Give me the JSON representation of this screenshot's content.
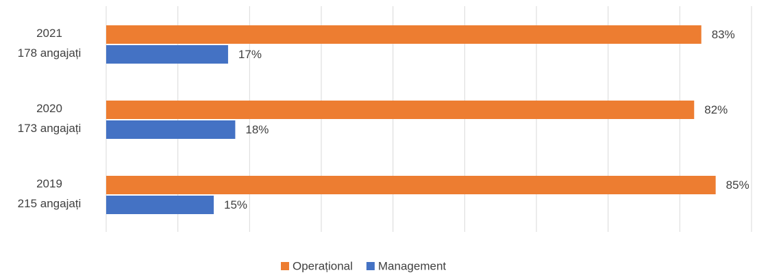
{
  "chart_data": {
    "type": "hbar",
    "categories": [
      [
        "2021",
        "178 angajați"
      ],
      [
        "2020",
        "173 angajați"
      ],
      [
        "2019",
        "215 angajați"
      ]
    ],
    "series": [
      {
        "name": "Operațional",
        "color": "#ED7D31",
        "values": [
          83,
          82,
          85
        ],
        "value_labels": [
          "83%",
          "82%",
          "85%"
        ]
      },
      {
        "name": "Management",
        "color": "#4472C4",
        "values": [
          17,
          18,
          15
        ],
        "value_labels": [
          "17%",
          "18%",
          "15%"
        ]
      }
    ],
    "xlim": [
      0,
      90
    ],
    "xticks": [
      0,
      10,
      20,
      30,
      40,
      50,
      60,
      70,
      80,
      90
    ],
    "tick_labels": false,
    "grid": true,
    "legend": "bottom"
  }
}
